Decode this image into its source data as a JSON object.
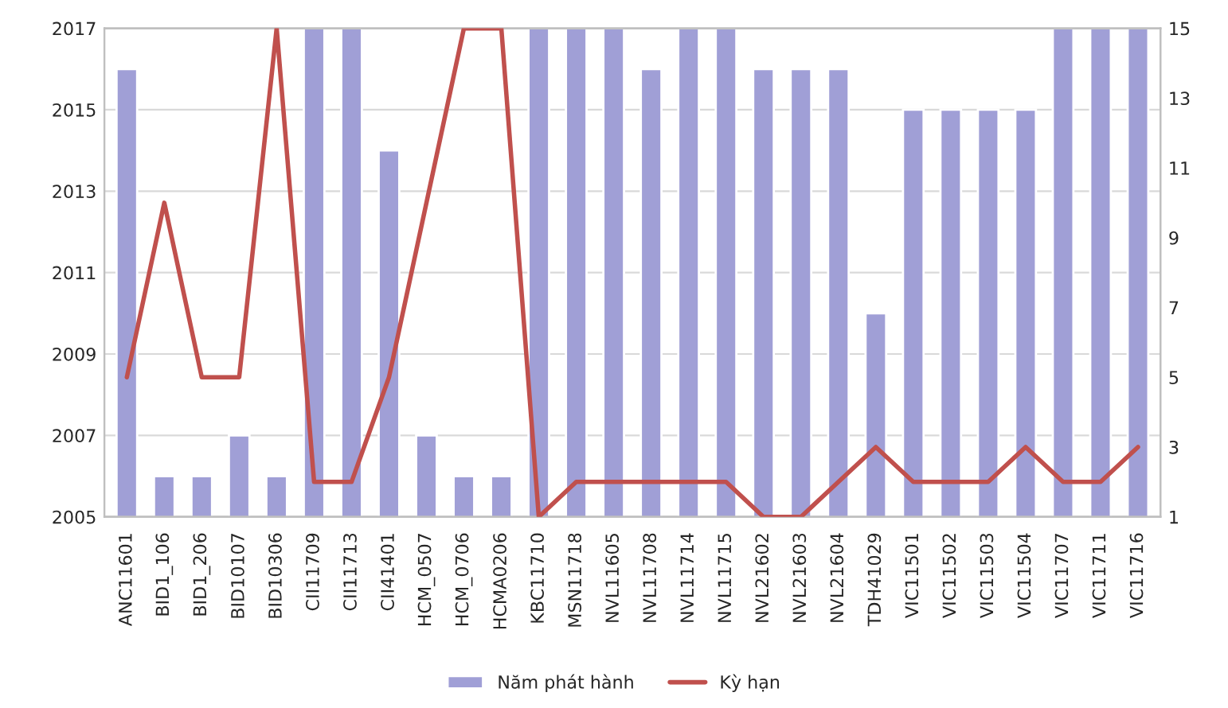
{
  "chart_data": {
    "type": "bar",
    "categories": [
      "ANC11601",
      "BID1_106",
      "BID1_206",
      "BID10107",
      "BID10306",
      "CII11709",
      "CII11713",
      "CII41401",
      "HCM_0507",
      "HCM_0706",
      "HCMA0206",
      "KBC11710",
      "MSN11718",
      "NVL11605",
      "NVL11708",
      "NVL11714",
      "NVL11715",
      "NVL21602",
      "NVL21603",
      "NVL21604",
      "TDH41029",
      "VIC11501",
      "VIC11502",
      "VIC11503",
      "VIC11504",
      "VIC11707",
      "VIC11711",
      "VIC11716"
    ],
    "series": [
      {
        "name": "Năm phát hành",
        "color": "#a09fd6",
        "values": [
          2016,
          2006,
          2006,
          2007,
          2006,
          2017,
          2017,
          2014,
          2007,
          2006,
          2006,
          2017,
          2017,
          2017,
          2016,
          2017,
          2017,
          2016,
          2016,
          2016,
          2010,
          2015,
          2015,
          2015,
          2015,
          2017,
          2017,
          2017
        ]
      },
      {
        "name": "Kỳ hạn",
        "type": "line",
        "axis": "y2",
        "color": "#c0504d",
        "values": [
          5,
          10,
          5,
          5,
          15,
          2,
          2,
          5,
          10,
          15,
          15,
          1,
          2,
          2,
          2,
          2,
          2,
          1,
          1,
          2,
          3,
          2,
          2,
          2,
          3,
          2,
          2,
          3
        ]
      }
    ],
    "ylim": [
      2005,
      2017
    ],
    "yticks": [
      2005,
      2007,
      2009,
      2011,
      2013,
      2015,
      2017
    ],
    "y2lim": [
      1,
      15
    ],
    "y2ticks": [
      1,
      3,
      5,
      7,
      9,
      11,
      13,
      15
    ],
    "grid": "y",
    "legend": "bottom",
    "marker": "none",
    "line_style": "solid"
  }
}
